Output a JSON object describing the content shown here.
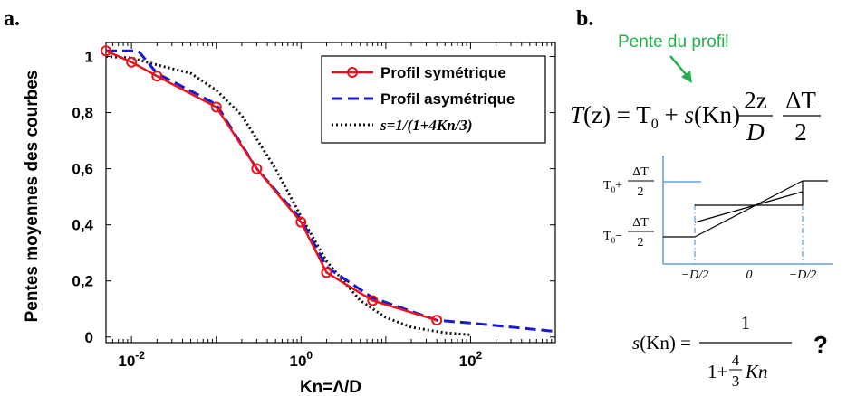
{
  "panel_a": {
    "label": "a.",
    "chart_data": {
      "type": "line",
      "title": "",
      "xlabel": "Kn=Λ/D",
      "ylabel": "Pentes moyennes des courbes",
      "xscale": "log",
      "xlim": [
        0.005,
        1000
      ],
      "ylim": [
        -0.02,
        1.05
      ],
      "xticks": [
        {
          "value": 0.01,
          "base": "10",
          "exp": "-2"
        },
        {
          "value": 1,
          "base": "10",
          "exp": "0"
        },
        {
          "value": 100,
          "base": "10",
          "exp": "2"
        }
      ],
      "yticks": [
        {
          "value": 0,
          "label": "0"
        },
        {
          "value": 0.2,
          "label": "0,2"
        },
        {
          "value": 0.4,
          "label": "0,4"
        },
        {
          "value": 0.6,
          "label": "0,6"
        },
        {
          "value": 0.8,
          "label": "0,8"
        },
        {
          "value": 1,
          "label": "1"
        }
      ],
      "grid": false,
      "legend_position": "top-right",
      "series": [
        {
          "name": "Profil symétrique",
          "color": "#e8141c",
          "style": "solid-circle-markers",
          "x": [
            0.005,
            0.01,
            0.02,
            0.1,
            0.3,
            1,
            2,
            7,
            40
          ],
          "y": [
            1.02,
            0.98,
            0.93,
            0.82,
            0.6,
            0.41,
            0.23,
            0.13,
            0.06
          ]
        },
        {
          "name": "Profil asymétrique",
          "color": "#1a1acc",
          "style": "dashed",
          "x": [
            0.005,
            0.012,
            0.02,
            0.1,
            0.3,
            1,
            2,
            7,
            40,
            100,
            1000
          ],
          "y": [
            1.02,
            1.02,
            0.94,
            0.83,
            0.6,
            0.42,
            0.25,
            0.14,
            0.06,
            0.05,
            0.02
          ]
        },
        {
          "name": "s=1/(1+4Kn/3)",
          "color": "#111111",
          "style": "dotted",
          "x": [
            0.005,
            0.01,
            0.02,
            0.05,
            0.1,
            0.2,
            0.5,
            1,
            2,
            5,
            10,
            20,
            50,
            100
          ],
          "y": [
            1.0,
            0.995,
            0.97,
            0.94,
            0.88,
            0.79,
            0.6,
            0.43,
            0.27,
            0.13,
            0.07,
            0.035,
            0.015,
            0.008
          ]
        }
      ]
    }
  },
  "panel_b": {
    "label": "b.",
    "annotation": "Pente du profil",
    "annotation_color": "#22b14c",
    "formula_T": {
      "lhs": "T(z) = T",
      "sub0": "0",
      "plus": "+ s(Kn)",
      "frac1_num": "2z",
      "frac1_den": "D",
      "frac2_num": "ΔT",
      "frac2_den": "2"
    },
    "diagram": {
      "top_label_base": "T",
      "top_label_sub": "0",
      "top_label_sign": "+",
      "bottom_label_base": "T",
      "bottom_label_sub": "0",
      "bottom_label_sign": "−",
      "frac_num": "ΔT",
      "frac_den": "2",
      "x_left": "−D/2",
      "x_mid": "0",
      "x_right": "−D/2"
    },
    "formula_s": {
      "lhs": "s(Kn) =",
      "num": "1",
      "den_prefix": "1+",
      "den_frac_num": "4",
      "den_frac_den": "3",
      "den_suffix": "Kn",
      "question": "?"
    }
  }
}
